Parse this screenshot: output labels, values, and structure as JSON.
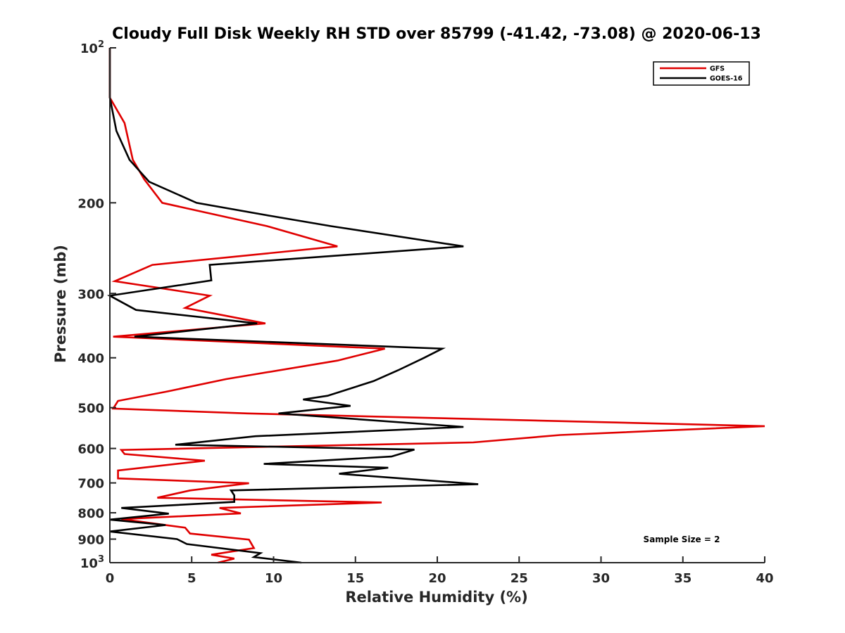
{
  "chart_data": {
    "type": "line",
    "title": "Cloudy Full Disk Weekly RH STD over 85799 (-41.42, -73.08) @ 2020-06-13",
    "xlabel": "Relative Humidity (%)",
    "ylabel": "Pressure (mb)",
    "xlim": [
      0,
      40
    ],
    "ylim": [
      100,
      1000
    ],
    "y_scale": "log",
    "y_reversed": true,
    "x_ticks": [
      "0",
      "5",
      "10",
      "15",
      "20",
      "25",
      "30",
      "35",
      "40"
    ],
    "y_ticks": [
      {
        "value": 100,
        "label": "10",
        "sup": "2"
      },
      {
        "value": 200,
        "label": "200",
        "sup": ""
      },
      {
        "value": 300,
        "label": "300",
        "sup": ""
      },
      {
        "value": 400,
        "label": "400",
        "sup": ""
      },
      {
        "value": 500,
        "label": "500",
        "sup": ""
      },
      {
        "value": 600,
        "label": "600",
        "sup": ""
      },
      {
        "value": 700,
        "label": "700",
        "sup": ""
      },
      {
        "value": 800,
        "label": "800",
        "sup": ""
      },
      {
        "value": 900,
        "label": "900",
        "sup": ""
      },
      {
        "value": 1000,
        "label": "10",
        "sup": "3"
      }
    ],
    "grid": false,
    "legend_position": "top-right",
    "annotation": "Sample Size = 2",
    "series": [
      {
        "name": "GFS",
        "color": "#e00000",
        "points": [
          [
            0,
            100
          ],
          [
            0,
            125
          ],
          [
            0.9,
            140
          ],
          [
            1.4,
            165
          ],
          [
            2.1,
            180
          ],
          [
            3.2,
            200
          ],
          [
            9.6,
            222
          ],
          [
            13.9,
            243
          ],
          [
            2.6,
            264
          ],
          [
            0.3,
            284
          ],
          [
            6.1,
            303
          ],
          [
            4.6,
            320
          ],
          [
            9.5,
            343
          ],
          [
            0.2,
            364
          ],
          [
            16.8,
            384
          ],
          [
            13.9,
            405
          ],
          [
            7.1,
            440
          ],
          [
            3.5,
            465
          ],
          [
            0.5,
            485
          ],
          [
            0.2,
            502
          ],
          [
            8.4,
            513
          ],
          [
            40,
            543
          ],
          [
            27.5,
            565
          ],
          [
            22.2,
            584
          ],
          [
            0.7,
            604
          ],
          [
            0.9,
            615
          ],
          [
            5.8,
            634
          ],
          [
            0.5,
            662
          ],
          [
            0.5,
            686
          ],
          [
            8.5,
            701
          ],
          [
            4.9,
            724
          ],
          [
            2.9,
            748
          ],
          [
            16.6,
            764
          ],
          [
            6.7,
            783
          ],
          [
            8.0,
            802
          ],
          [
            0.7,
            823
          ],
          [
            4.6,
            855
          ],
          [
            4.9,
            878
          ],
          [
            8.5,
            902
          ],
          [
            8.8,
            937
          ],
          [
            6.2,
            965
          ],
          [
            7.6,
            982
          ],
          [
            6.6,
            1000
          ]
        ]
      },
      {
        "name": "GOES-16",
        "color": "#000000",
        "points": [
          [
            0,
            100
          ],
          [
            0,
            125
          ],
          [
            0.4,
            145
          ],
          [
            1.2,
            165
          ],
          [
            2.4,
            182
          ],
          [
            5.3,
            200
          ],
          [
            9.8,
            212
          ],
          [
            13.5,
            222
          ],
          [
            21.6,
            243
          ],
          [
            6.1,
            264
          ],
          [
            6.2,
            283
          ],
          [
            0,
            303
          ],
          [
            1.6,
            323
          ],
          [
            9.0,
            343
          ],
          [
            1.5,
            364
          ],
          [
            20.3,
            384
          ],
          [
            19.2,
            400
          ],
          [
            17.6,
            423
          ],
          [
            16.1,
            444
          ],
          [
            13.3,
            474
          ],
          [
            11.8,
            482
          ],
          [
            14.7,
            496
          ],
          [
            10.3,
            513
          ],
          [
            21.6,
            545
          ],
          [
            8.9,
            568
          ],
          [
            4.0,
            590
          ],
          [
            18.6,
            603
          ],
          [
            17.2,
            622
          ],
          [
            9.4,
            643
          ],
          [
            17.0,
            654
          ],
          [
            14.0,
            672
          ],
          [
            22.5,
            704
          ],
          [
            7.4,
            724
          ],
          [
            7.6,
            740
          ],
          [
            7.6,
            762
          ],
          [
            0.7,
            783
          ],
          [
            3.6,
            803
          ],
          [
            0,
            825
          ],
          [
            3.4,
            845
          ],
          [
            0,
            870
          ],
          [
            4.1,
            900
          ],
          [
            4.7,
            920
          ],
          [
            9.2,
            958
          ],
          [
            8.8,
            975
          ],
          [
            11.7,
            1000
          ]
        ]
      }
    ]
  }
}
